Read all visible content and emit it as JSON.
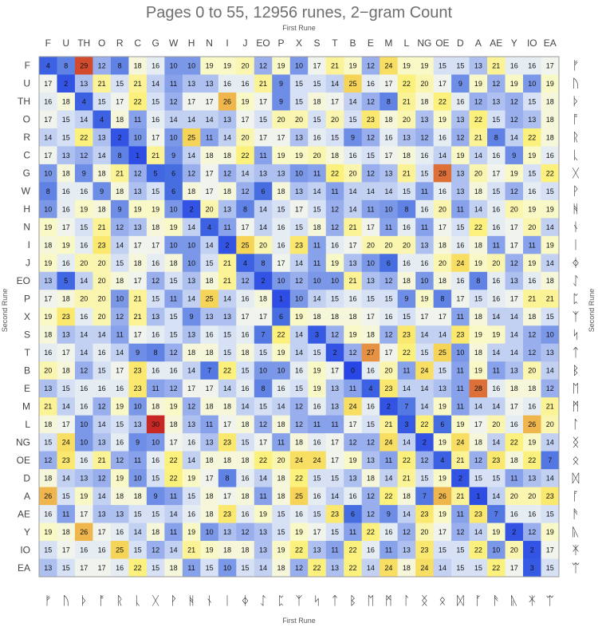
{
  "chart_data": {
    "type": "heatmap",
    "title": "Pages 0 to 55, 12956 runes,  2−gram Count",
    "xlabel_top": "First Rune",
    "xlabel_bottom": "First Rune",
    "ylabel_left": "Second Rune",
    "ylabel_right": "Second Rune",
    "x_labels": [
      "F",
      "U",
      "TH",
      "O",
      "R",
      "C",
      "G",
      "W",
      "H",
      "N",
      "I",
      "J",
      "EO",
      "P",
      "X",
      "S",
      "T",
      "B",
      "E",
      "M",
      "L",
      "NG",
      "OE",
      "D",
      "A",
      "AE",
      "Y",
      "IO",
      "EA"
    ],
    "y_labels": [
      "F",
      "U",
      "TH",
      "O",
      "R",
      "C",
      "G",
      "W",
      "H",
      "N",
      "I",
      "J",
      "EO",
      "P",
      "X",
      "S",
      "T",
      "B",
      "E",
      "M",
      "L",
      "NG",
      "OE",
      "D",
      "A",
      "AE",
      "Y",
      "IO",
      "EA"
    ],
    "runes": [
      "ᚠ",
      "ᚢ",
      "ᚦ",
      "ᚩ",
      "ᚱ",
      "ᚳ",
      "ᚷ",
      "ᚹ",
      "ᚻ",
      "ᚾ",
      "ᛁ",
      "ᛄ",
      "ᛇ",
      "ᛈ",
      "ᛉ",
      "ᛋ",
      "ᛏ",
      "ᛒ",
      "ᛖ",
      "ᛗ",
      "ᛚ",
      "ᛝ",
      "ᛟ",
      "ᛞ",
      "ᚪ",
      "ᚫ",
      "ᚣ",
      "ᛡ",
      "ᛠ"
    ],
    "values": [
      [
        4,
        8,
        29,
        12,
        8,
        18,
        16,
        10,
        10,
        19,
        19,
        20,
        12,
        19,
        10,
        17,
        21,
        19,
        12,
        24,
        19,
        19,
        15,
        15,
        13,
        21,
        16,
        16,
        17
      ],
      [
        17,
        2,
        13,
        21,
        15,
        21,
        14,
        11,
        13,
        13,
        16,
        16,
        21,
        9,
        15,
        15,
        14,
        25,
        16,
        17,
        22,
        20,
        17,
        9,
        19,
        12,
        19,
        10,
        19
      ],
      [
        16,
        18,
        4,
        15,
        17,
        22,
        15,
        12,
        17,
        17,
        26,
        19,
        17,
        9,
        15,
        18,
        17,
        14,
        12,
        8,
        21,
        18,
        22,
        16,
        12,
        13,
        12,
        15,
        18
      ],
      [
        17,
        15,
        14,
        4,
        18,
        11,
        16,
        14,
        14,
        14,
        13,
        17,
        15,
        20,
        20,
        15,
        20,
        15,
        23,
        18,
        20,
        13,
        19,
        13,
        22,
        15,
        12,
        13,
        18
      ],
      [
        14,
        15,
        22,
        13,
        2,
        10,
        17,
        10,
        25,
        11,
        14,
        20,
        17,
        17,
        13,
        16,
        15,
        9,
        12,
        16,
        13,
        12,
        16,
        12,
        21,
        8,
        14,
        22,
        18
      ],
      [
        17,
        13,
        12,
        14,
        8,
        1,
        21,
        9,
        14,
        18,
        18,
        22,
        11,
        19,
        19,
        20,
        18,
        16,
        15,
        17,
        18,
        16,
        14,
        19,
        14,
        16,
        9,
        19,
        16
      ],
      [
        10,
        18,
        9,
        18,
        21,
        12,
        5,
        6,
        12,
        17,
        12,
        14,
        13,
        13,
        10,
        11,
        22,
        20,
        12,
        13,
        21,
        15,
        28,
        13,
        20,
        17,
        19,
        15,
        22
      ],
      [
        8,
        16,
        16,
        9,
        18,
        13,
        15,
        6,
        18,
        17,
        18,
        12,
        6,
        18,
        13,
        14,
        11,
        14,
        14,
        14,
        15,
        11,
        16,
        13,
        18,
        15,
        12,
        16,
        15
      ],
      [
        10,
        16,
        19,
        18,
        9,
        19,
        19,
        10,
        2,
        20,
        13,
        8,
        14,
        15,
        17,
        15,
        12,
        14,
        11,
        10,
        8,
        16,
        20,
        11,
        14,
        16,
        20,
        19,
        19
      ],
      [
        19,
        17,
        15,
        21,
        12,
        13,
        18,
        19,
        14,
        4,
        11,
        17,
        14,
        16,
        15,
        18,
        12,
        21,
        17,
        11,
        16,
        11,
        17,
        15,
        22,
        16,
        17,
        20,
        14
      ],
      [
        18,
        19,
        16,
        23,
        14,
        17,
        17,
        10,
        10,
        14,
        2,
        25,
        20,
        16,
        23,
        11,
        16,
        17,
        20,
        20,
        20,
        13,
        18,
        16,
        18,
        11,
        17,
        11,
        19
      ],
      [
        19,
        16,
        20,
        20,
        15,
        18,
        16,
        18,
        10,
        15,
        21,
        4,
        8,
        17,
        14,
        11,
        19,
        13,
        10,
        6,
        16,
        16,
        20,
        24,
        19,
        20,
        12,
        19,
        14
      ],
      [
        13,
        5,
        14,
        20,
        18,
        17,
        12,
        15,
        13,
        18,
        21,
        12,
        2,
        10,
        12,
        10,
        10,
        21,
        13,
        12,
        18,
        10,
        18,
        16,
        8,
        16,
        13,
        16,
        18
      ],
      [
        17,
        18,
        20,
        20,
        10,
        21,
        15,
        11,
        14,
        25,
        14,
        16,
        18,
        1,
        10,
        14,
        15,
        16,
        15,
        15,
        9,
        19,
        8,
        17,
        15,
        16,
        17,
        21,
        21
      ],
      [
        19,
        23,
        16,
        20,
        12,
        21,
        13,
        15,
        9,
        13,
        13,
        17,
        17,
        6,
        19,
        18,
        18,
        18,
        17,
        16,
        15,
        17,
        17,
        11,
        18,
        14,
        14,
        18,
        15
      ],
      [
        18,
        13,
        14,
        14,
        11,
        17,
        16,
        15,
        13,
        16,
        15,
        16,
        7,
        22,
        14,
        3,
        12,
        19,
        18,
        12,
        23,
        14,
        14,
        23,
        19,
        19,
        14,
        12,
        10
      ],
      [
        16,
        17,
        14,
        16,
        14,
        9,
        8,
        12,
        18,
        18,
        15,
        18,
        15,
        19,
        14,
        15,
        2,
        12,
        27,
        17,
        22,
        15,
        25,
        10,
        18,
        14,
        14,
        12,
        13
      ],
      [
        20,
        18,
        12,
        15,
        17,
        23,
        16,
        16,
        14,
        7,
        22,
        15,
        10,
        10,
        16,
        19,
        17,
        0,
        16,
        20,
        11,
        24,
        15,
        11,
        19,
        11,
        13,
        20,
        14
      ],
      [
        13,
        15,
        16,
        16,
        16,
        23,
        11,
        12,
        17,
        17,
        14,
        16,
        8,
        16,
        15,
        19,
        13,
        11,
        4,
        23,
        14,
        14,
        13,
        11,
        28,
        16,
        18,
        18,
        12
      ],
      [
        21,
        14,
        16,
        12,
        19,
        10,
        18,
        19,
        12,
        18,
        18,
        14,
        15,
        14,
        12,
        16,
        13,
        24,
        16,
        2,
        7,
        14,
        19,
        11,
        14,
        14,
        17,
        16,
        21
      ],
      [
        18,
        17,
        10,
        14,
        15,
        13,
        30,
        18,
        13,
        11,
        17,
        18,
        12,
        18,
        12,
        11,
        11,
        17,
        15,
        21,
        3,
        22,
        6,
        19,
        17,
        20,
        16,
        26,
        20
      ],
      [
        15,
        24,
        10,
        13,
        16,
        9,
        10,
        17,
        16,
        13,
        23,
        15,
        17,
        11,
        18,
        16,
        17,
        12,
        12,
        24,
        14,
        2,
        19,
        24,
        18,
        14,
        22,
        19,
        14
      ],
      [
        12,
        23,
        16,
        21,
        12,
        11,
        16,
        22,
        14,
        18,
        18,
        18,
        22,
        20,
        24,
        24,
        17,
        19,
        13,
        11,
        22,
        12,
        4,
        21,
        12,
        23,
        18,
        22,
        7
      ],
      [
        18,
        14,
        13,
        12,
        19,
        10,
        15,
        22,
        19,
        17,
        8,
        16,
        14,
        18,
        22,
        15,
        15,
        13,
        18,
        14,
        21,
        15,
        19,
        2,
        15,
        15,
        11,
        13,
        14
      ],
      [
        26,
        15,
        19,
        14,
        18,
        18,
        9,
        11,
        15,
        18,
        17,
        18,
        11,
        18,
        25,
        16,
        14,
        16,
        12,
        22,
        18,
        7,
        26,
        21,
        1,
        14,
        20,
        20,
        23
      ],
      [
        16,
        11,
        17,
        13,
        13,
        15,
        15,
        14,
        16,
        18,
        23,
        16,
        19,
        15,
        16,
        15,
        23,
        6,
        12,
        9,
        14,
        23,
        19,
        11,
        23,
        7,
        16,
        16,
        15
      ],
      [
        19,
        18,
        26,
        17,
        16,
        14,
        18,
        11,
        19,
        10,
        13,
        12,
        13,
        15,
        19,
        17,
        15,
        11,
        22,
        16,
        12,
        20,
        17,
        12,
        14,
        19,
        2,
        12,
        19
      ],
      [
        15,
        17,
        16,
        16,
        25,
        15,
        12,
        14,
        21,
        19,
        18,
        18,
        13,
        19,
        22,
        13,
        11,
        22,
        16,
        11,
        13,
        23,
        15,
        15,
        22,
        10,
        20,
        2,
        17
      ],
      [
        13,
        15,
        17,
        17,
        16,
        22,
        15,
        18,
        11,
        15,
        10,
        15,
        14,
        18,
        12,
        22,
        13,
        22,
        14,
        24,
        18,
        24,
        14,
        15,
        15,
        22,
        17,
        3,
        15
      ]
    ],
    "value_range": [
      0,
      30
    ],
    "grid": false,
    "legend": "none"
  }
}
